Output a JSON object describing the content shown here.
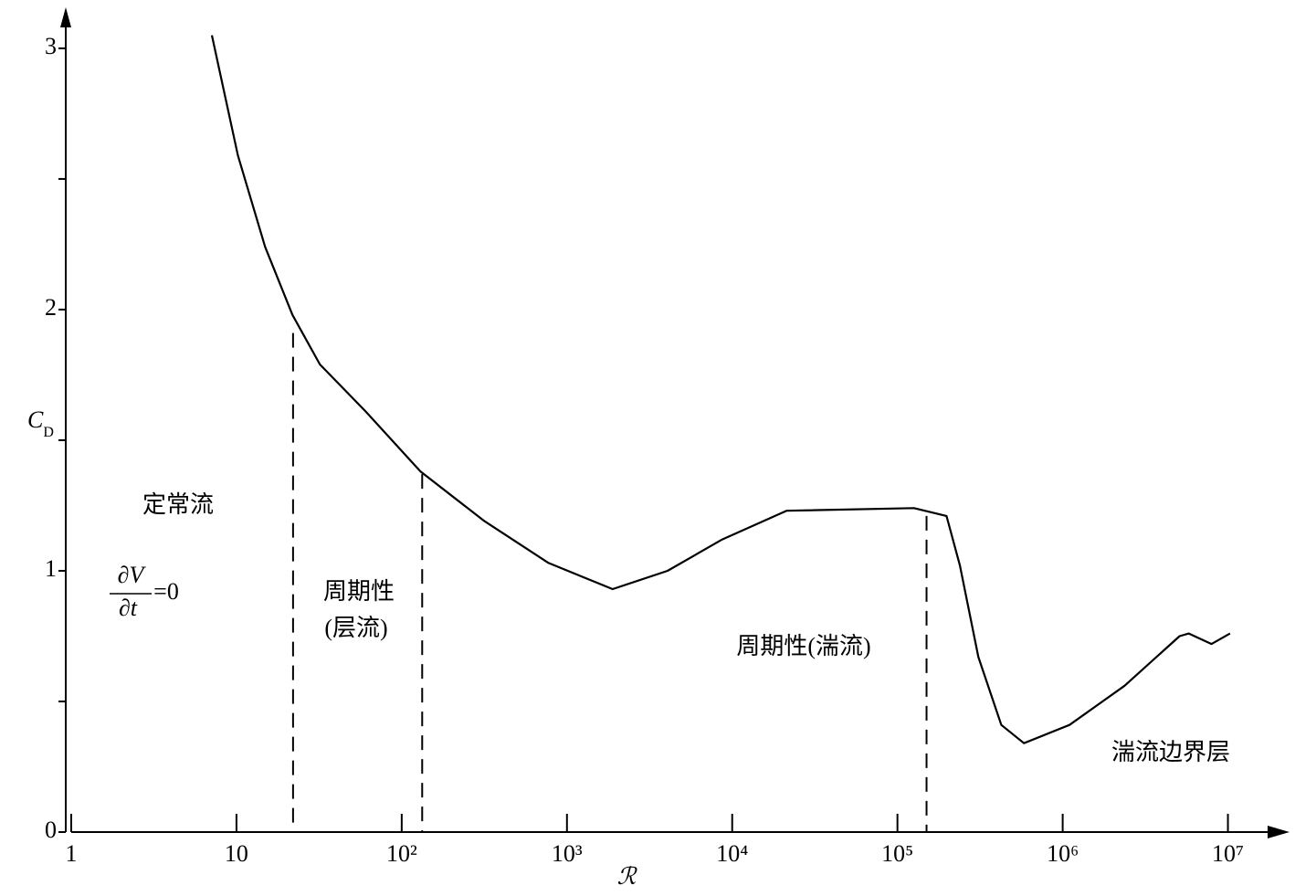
{
  "chart_data": {
    "type": "line",
    "x": [
      7.1,
      10.2,
      14.9,
      21.8,
      32,
      60.5,
      130,
      317,
      774,
      1890,
      4060,
      8710,
      21300,
      126000,
      198000,
      239000,
      309000,
      425000,
      583000,
      1100000,
      2370000,
      5100000,
      5800000,
      7960000,
      10300000
    ],
    "values": [
      3.05,
      2.59,
      2.24,
      1.98,
      1.79,
      1.61,
      1.38,
      1.19,
      1.03,
      0.93,
      1.0,
      1.12,
      1.23,
      1.24,
      1.21,
      1.02,
      0.67,
      0.41,
      0.34,
      0.41,
      0.56,
      0.75,
      0.76,
      0.72,
      0.76
    ],
    "color": "#000000",
    "xscale": "log",
    "xlim": [
      1,
      23000000
    ],
    "ylim": [
      0,
      3.15
    ],
    "xticks": [
      1,
      10,
      {
        "value": 100,
        "label": "10²"
      },
      {
        "value": 1000,
        "label": "10³"
      },
      {
        "value": 10000,
        "label": "10⁴"
      },
      {
        "value": 100000,
        "label": "10⁵"
      },
      {
        "value": 1000000,
        "label": "10⁶"
      },
      {
        "value": 10000000,
        "label": "10⁷"
      }
    ],
    "yticks": [
      0,
      1,
      2,
      3
    ],
    "yminorticks": [
      0.5,
      1.5,
      2.5
    ],
    "xlabel": "ℛ",
    "ylabel": "C",
    "ylabel_subscript": "D",
    "vlines": [
      {
        "x": 22,
        "y": 1.91
      },
      {
        "x": 133,
        "y": 1.37
      },
      {
        "x": 150000,
        "y": 1.21
      }
    ],
    "annotations": {
      "steady": "定常流",
      "dv": "∂V",
      "dt": "∂t",
      "eq": "=0",
      "periodic_laminar_1": "周期性",
      "periodic_laminar_2": "(层流)",
      "periodic_turbulent": "周期性(湍流)",
      "turbulent_bl": "湍流边界层"
    }
  }
}
